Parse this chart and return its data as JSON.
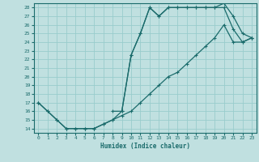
{
  "xlabel": "Humidex (Indice chaleur)",
  "background_color": "#c0e0e0",
  "grid_color": "#99cccc",
  "line_color": "#1a6b6b",
  "xlim": [
    -0.5,
    23.5
  ],
  "ylim": [
    13.5,
    28.5
  ],
  "yticks": [
    14,
    15,
    16,
    17,
    18,
    19,
    20,
    21,
    22,
    23,
    24,
    25,
    26,
    27,
    28
  ],
  "xticks": [
    0,
    1,
    2,
    3,
    4,
    5,
    6,
    7,
    8,
    9,
    10,
    11,
    12,
    13,
    14,
    15,
    16,
    17,
    18,
    19,
    20,
    21,
    22,
    23
  ],
  "line1_x": [
    0,
    1,
    2,
    3,
    4,
    5,
    6,
    7,
    8,
    9,
    10,
    11,
    12,
    13,
    14,
    15,
    16,
    17,
    18,
    19,
    20,
    21,
    22,
    23
  ],
  "line1_y": [
    17,
    16,
    15,
    14,
    14,
    14,
    14,
    14.5,
    15,
    15.5,
    16,
    17,
    18,
    19,
    20,
    20.5,
    21.5,
    22.5,
    23.5,
    24.5,
    26,
    24,
    24,
    24.5
  ],
  "line2_x": [
    0,
    1,
    2,
    3,
    4,
    5,
    6,
    7,
    8,
    9,
    10,
    11,
    12,
    13,
    14,
    15,
    16,
    17,
    18,
    19,
    20,
    21,
    22,
    23
  ],
  "line2_y": [
    17,
    16,
    15,
    14,
    14,
    14,
    14,
    14.5,
    15,
    16,
    22.5,
    25,
    28,
    27,
    28,
    28,
    28,
    28,
    28,
    28,
    28,
    25.5,
    24,
    24.5
  ],
  "line3_x": [
    8,
    9,
    10,
    11,
    12,
    13,
    14,
    15,
    16,
    17,
    18,
    19,
    20,
    21,
    22,
    23
  ],
  "line3_y": [
    16,
    16,
    22.5,
    25,
    28,
    27,
    28,
    28,
    28,
    28,
    28,
    28,
    28.5,
    27,
    25,
    24.5
  ]
}
